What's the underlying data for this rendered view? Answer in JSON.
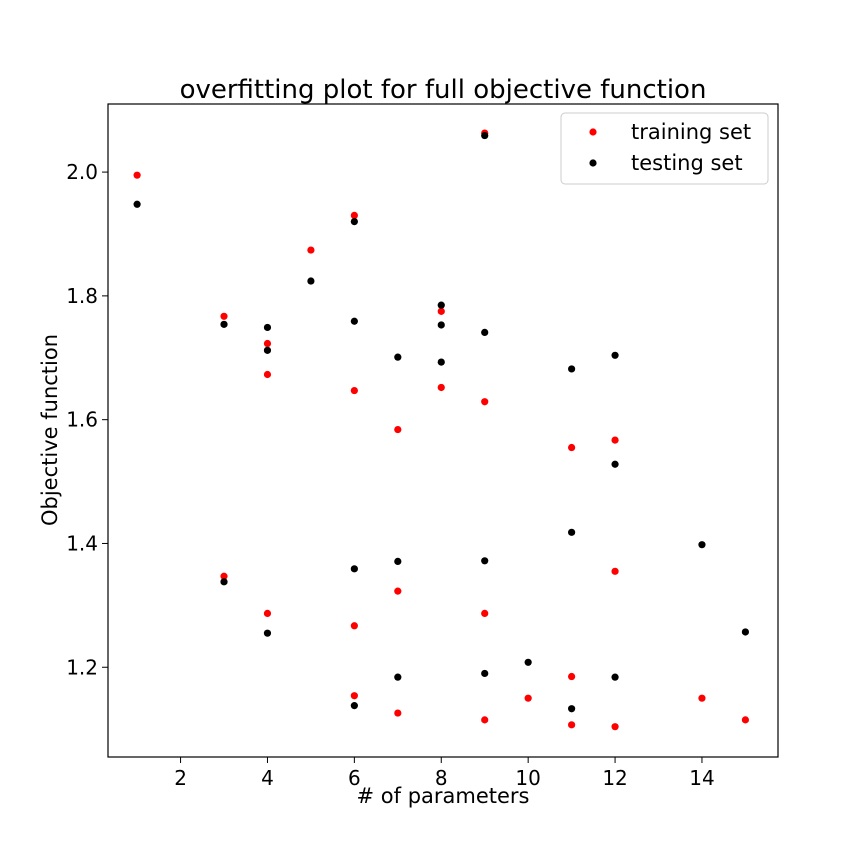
{
  "chart_data": {
    "type": "scatter",
    "title": "overfitting plot for full objective function",
    "xlabel": "# of parameters",
    "ylabel": "Objective function",
    "xlim": [
      0.33,
      15.75
    ],
    "ylim": [
      1.055,
      2.11
    ],
    "xticks": [
      2,
      4,
      6,
      8,
      10,
      12,
      14
    ],
    "yticks": [
      1.2,
      1.4,
      1.6,
      1.8,
      2.0
    ],
    "xtick_labels": [
      "2",
      "4",
      "6",
      "8",
      "10",
      "12",
      "14"
    ],
    "ytick_labels": [
      "1.2",
      "1.4",
      "1.6",
      "1.8",
      "2.0"
    ],
    "grid": false,
    "legend_position": "upper right",
    "series": [
      {
        "name": "training set",
        "color": "#ff0000",
        "points": [
          [
            1,
            1.995
          ],
          [
            3,
            1.767
          ],
          [
            3,
            1.347
          ],
          [
            4,
            1.723
          ],
          [
            4,
            1.673
          ],
          [
            4,
            1.287
          ],
          [
            5,
            1.874
          ],
          [
            6,
            1.93
          ],
          [
            6,
            1.647
          ],
          [
            6,
            1.267
          ],
          [
            6,
            1.154
          ],
          [
            7,
            1.584
          ],
          [
            7,
            1.323
          ],
          [
            7,
            1.126
          ],
          [
            8,
            1.775
          ],
          [
            8,
            1.652
          ],
          [
            9,
            2.063
          ],
          [
            9,
            1.629
          ],
          [
            9,
            1.287
          ],
          [
            9,
            1.115
          ],
          [
            10,
            1.15
          ],
          [
            11,
            1.555
          ],
          [
            11,
            1.185
          ],
          [
            11,
            1.107
          ],
          [
            12,
            1.567
          ],
          [
            12,
            1.355
          ],
          [
            12,
            1.104
          ],
          [
            14,
            1.15
          ],
          [
            15,
            1.115
          ]
        ]
      },
      {
        "name": "testing set",
        "color": "#000000",
        "points": [
          [
            1,
            1.948
          ],
          [
            3,
            1.754
          ],
          [
            3,
            1.338
          ],
          [
            4,
            1.749
          ],
          [
            4,
            1.712
          ],
          [
            4,
            1.255
          ],
          [
            5,
            1.824
          ],
          [
            6,
            1.92
          ],
          [
            6,
            1.759
          ],
          [
            6,
            1.359
          ],
          [
            6,
            1.138
          ],
          [
            7,
            1.701
          ],
          [
            7,
            1.371
          ],
          [
            7,
            1.184
          ],
          [
            8,
            1.785
          ],
          [
            8,
            1.753
          ],
          [
            8,
            1.693
          ],
          [
            9,
            2.059
          ],
          [
            9,
            1.741
          ],
          [
            9,
            1.372
          ],
          [
            9,
            1.19
          ],
          [
            10,
            1.208
          ],
          [
            11,
            1.682
          ],
          [
            11,
            1.418
          ],
          [
            11,
            1.133
          ],
          [
            12,
            1.704
          ],
          [
            12,
            1.528
          ],
          [
            12,
            1.184
          ],
          [
            14,
            1.398
          ],
          [
            15,
            1.257
          ]
        ]
      }
    ]
  }
}
